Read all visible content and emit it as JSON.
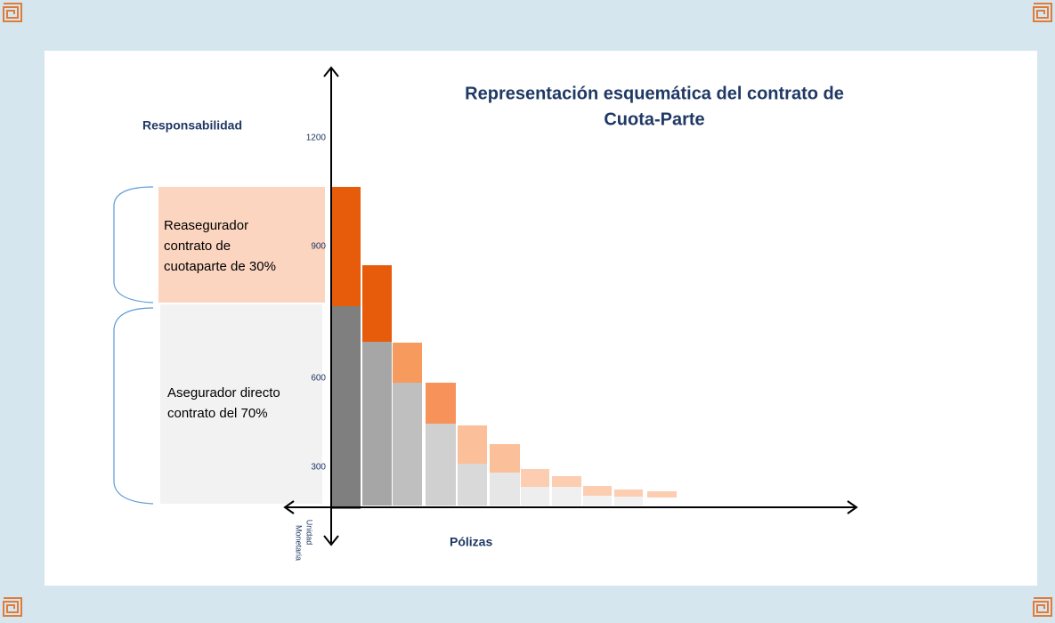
{
  "title": [
    "Representación esquemática del contrato de",
    "Cuota-Parte"
  ],
  "y_axis_label": "Responsabilidad",
  "x_axis_label": "Pólizas",
  "unit_label": [
    "Unidad",
    "Monetaria"
  ],
  "tick_labels": [
    "1200",
    "900",
    "600",
    "300"
  ],
  "reinsurer_box": [
    "Reasegurador",
    "contrato de",
    "cuotaparte de 30%"
  ],
  "insurer_box": [
    "Asegurador directo",
    "contrato del 70%"
  ]
}
